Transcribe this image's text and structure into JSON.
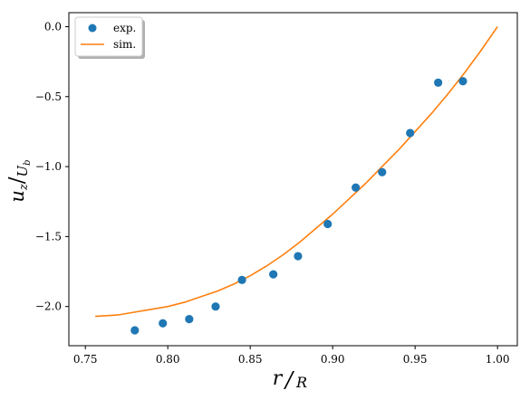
{
  "chart_data": {
    "type": "scatter",
    "title": "",
    "xlabel": {
      "num": "r",
      "den": "R"
    },
    "ylabel": {
      "num": "u",
      "num_sub": "z",
      "den": "U",
      "den_sub": "b"
    },
    "xlim": [
      0.74,
      1.012
    ],
    "ylim": [
      -2.28,
      0.1
    ],
    "xticks": [
      0.75,
      0.8,
      0.85,
      0.9,
      0.95,
      1.0
    ],
    "xtick_labels": [
      "0.75",
      "0.80",
      "0.85",
      "0.90",
      "0.95",
      "1.00"
    ],
    "yticks": [
      0.0,
      -0.5,
      -1.0,
      -1.5,
      -2.0
    ],
    "ytick_labels": [
      "0.0",
      "−0.5",
      "−1.0",
      "−1.5",
      "−2.0"
    ],
    "grid": false,
    "legend_position": "top-left",
    "series": [
      {
        "name": "exp.",
        "kind": "scatter",
        "color": "#1f77b4",
        "x": [
          0.78,
          0.797,
          0.813,
          0.829,
          0.845,
          0.864,
          0.879,
          0.897,
          0.914,
          0.93,
          0.947,
          0.964,
          0.979
        ],
        "y": [
          -2.17,
          -2.12,
          -2.09,
          -2.0,
          -1.81,
          -1.77,
          -1.64,
          -1.41,
          -1.15,
          -1.04,
          -0.76,
          -0.4,
          -0.39
        ]
      },
      {
        "name": "sim.",
        "kind": "line",
        "color": "#ff7f0e",
        "x": [
          0.756,
          0.77,
          0.78,
          0.79,
          0.8,
          0.81,
          0.82,
          0.83,
          0.84,
          0.85,
          0.86,
          0.87,
          0.88,
          0.89,
          0.9,
          0.91,
          0.92,
          0.93,
          0.94,
          0.95,
          0.96,
          0.97,
          0.98,
          0.99,
          1.0
        ],
        "y": [
          -2.07,
          -2.06,
          -2.04,
          -2.02,
          -2.0,
          -1.97,
          -1.93,
          -1.89,
          -1.84,
          -1.78,
          -1.71,
          -1.63,
          -1.54,
          -1.44,
          -1.34,
          -1.23,
          -1.12,
          -1.0,
          -0.88,
          -0.75,
          -0.62,
          -0.48,
          -0.33,
          -0.17,
          0.0
        ]
      }
    ]
  }
}
